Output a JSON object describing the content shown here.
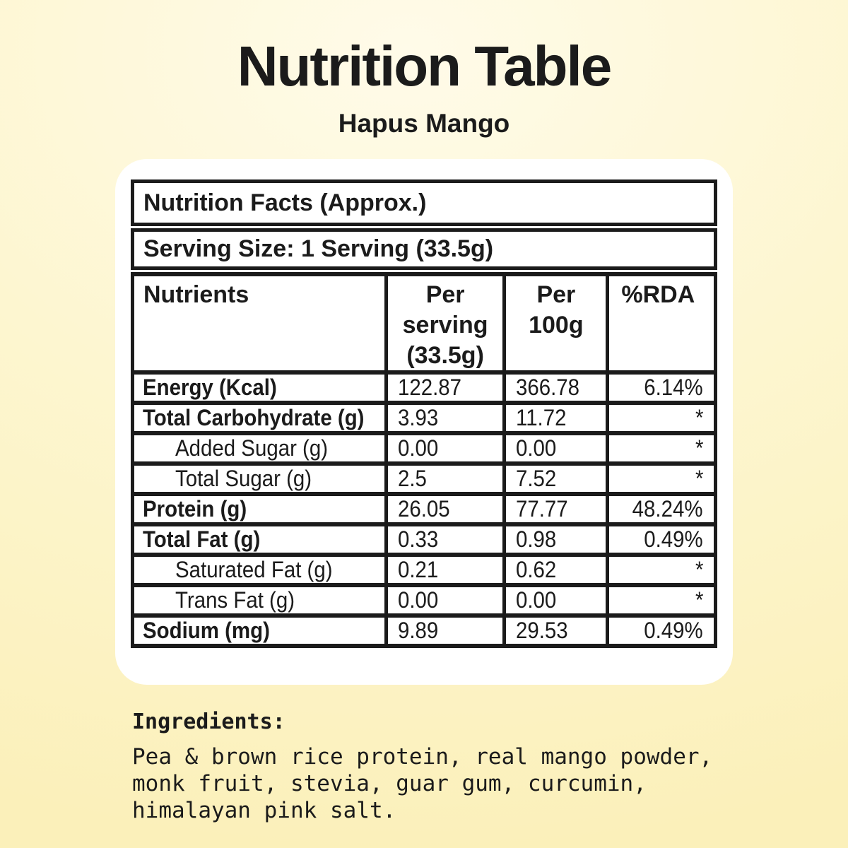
{
  "page": {
    "title": "Nutrition Table",
    "subtitle": "Hapus Mango"
  },
  "colors": {
    "background_top": "#FFFBE9",
    "background_bottom": "#FBF0BA",
    "card": "#FFFFFF",
    "text_and_borders": "#1B1B1B"
  },
  "table": {
    "facts_header": "Nutrition Facts (Approx.)",
    "serving_size": "Serving Size: 1 Serving (33.5g)",
    "columns": [
      "Nutrients",
      "Per serving (33.5g)",
      "Per 100g",
      "%RDA"
    ],
    "rows": [
      {
        "label": "Energy (Kcal)",
        "bold": true,
        "indent": false,
        "per_serving": "122.87",
        "per_100g": "366.78",
        "rda": "6.14%"
      },
      {
        "label": "Total Carbohydrate (g)",
        "bold": true,
        "indent": false,
        "per_serving": "3.93",
        "per_100g": "11.72",
        "rda": "*"
      },
      {
        "label": "Added Sugar (g)",
        "bold": false,
        "indent": true,
        "per_serving": "0.00",
        "per_100g": "0.00",
        "rda": "*"
      },
      {
        "label": "Total Sugar (g)",
        "bold": false,
        "indent": true,
        "per_serving": "2.5",
        "per_100g": "7.52",
        "rda": "*"
      },
      {
        "label": "Protein (g)",
        "bold": true,
        "indent": false,
        "per_serving": "26.05",
        "per_100g": "77.77",
        "rda": "48.24%"
      },
      {
        "label": "Total Fat (g)",
        "bold": true,
        "indent": false,
        "per_serving": "0.33",
        "per_100g": "0.98",
        "rda": "0.49%"
      },
      {
        "label": "Saturated Fat (g)",
        "bold": false,
        "indent": true,
        "per_serving": "0.21",
        "per_100g": "0.62",
        "rda": "*"
      },
      {
        "label": "Trans Fat (g)",
        "bold": false,
        "indent": true,
        "per_serving": "0.00",
        "per_100g": "0.00",
        "rda": "*"
      },
      {
        "label": "Sodium (mg)",
        "bold": true,
        "indent": false,
        "per_serving": "9.89",
        "per_100g": "29.53",
        "rda": "0.49%"
      }
    ]
  },
  "ingredients": {
    "heading": "Ingredients:",
    "lines": [
      "Pea & brown rice protein, real mango powder,",
      "monk fruit, stevia, guar gum, curcumin,",
      "himalayan pink salt."
    ]
  }
}
